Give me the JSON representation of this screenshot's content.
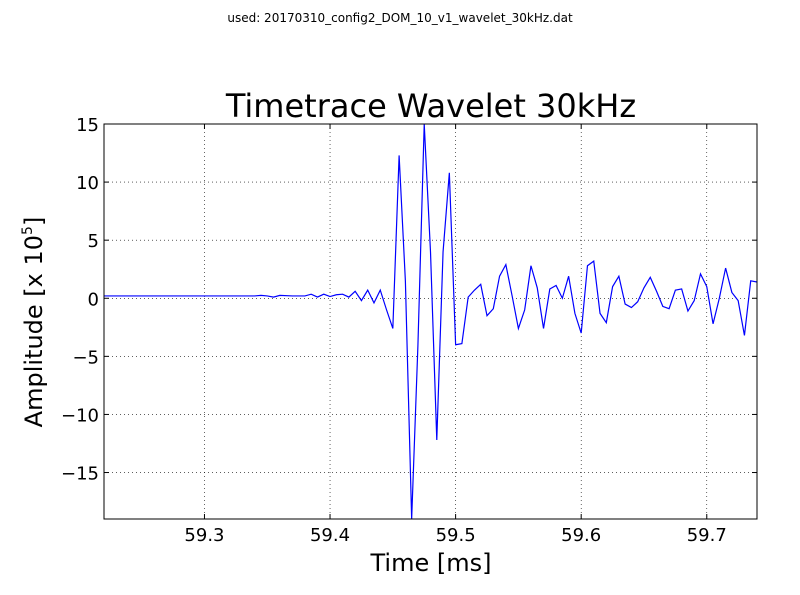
{
  "suptitle": "used: 20170310_config2_DOM_10_v1_wavelet_30kHz.dat",
  "chart_data": {
    "type": "line",
    "title": "Timetrace Wavelet 30kHz",
    "xlabel": "Time [ms]",
    "ylabel_main": "Amplitude [x 10",
    "ylabel_exp": "5",
    "ylabel_close": "]",
    "xlim": [
      59.22,
      59.74
    ],
    "ylim": [
      -19,
      15
    ],
    "xticks": [
      59.3,
      59.4,
      59.5,
      59.6,
      59.7
    ],
    "xtick_labels": [
      "59.3",
      "59.4",
      "59.5",
      "59.6",
      "59.7"
    ],
    "yticks": [
      15,
      10,
      5,
      0,
      -5,
      -10,
      -15
    ],
    "ytick_labels": [
      "15",
      "10",
      "5",
      "0",
      "−5",
      "−10",
      "−15"
    ],
    "grid": true,
    "line_color": "#0000ff",
    "series": [
      {
        "name": "amplitude",
        "x": [
          59.22,
          59.23,
          59.24,
          59.25,
          59.26,
          59.27,
          59.28,
          59.29,
          59.3,
          59.31,
          59.32,
          59.33,
          59.34,
          59.345,
          59.35,
          59.355,
          59.36,
          59.37,
          59.38,
          59.385,
          59.39,
          59.395,
          59.4,
          59.405,
          59.41,
          59.415,
          59.42,
          59.425,
          59.43,
          59.435,
          59.44,
          59.445,
          59.45,
          59.455,
          59.46,
          59.465,
          59.47,
          59.475,
          59.48,
          59.485,
          59.49,
          59.495,
          59.5,
          59.505,
          59.51,
          59.515,
          59.52,
          59.525,
          59.53,
          59.535,
          59.54,
          59.545,
          59.55,
          59.555,
          59.56,
          59.565,
          59.57,
          59.575,
          59.58,
          59.585,
          59.59,
          59.595,
          59.6,
          59.605,
          59.61,
          59.615,
          59.62,
          59.625,
          59.63,
          59.635,
          59.64,
          59.645,
          59.65,
          59.655,
          59.66,
          59.665,
          59.67,
          59.675,
          59.68,
          59.685,
          59.69,
          59.695,
          59.7,
          59.705,
          59.71,
          59.715,
          59.72,
          59.725,
          59.73,
          59.735,
          59.74
        ],
        "y": [
          0.2,
          0.2,
          0.2,
          0.2,
          0.2,
          0.2,
          0.2,
          0.2,
          0.2,
          0.2,
          0.2,
          0.2,
          0.2,
          0.25,
          0.2,
          0.1,
          0.25,
          0.2,
          0.2,
          0.35,
          0.1,
          0.35,
          0.15,
          0.3,
          0.35,
          0.1,
          0.6,
          -0.2,
          0.7,
          -0.4,
          0.7,
          -1.0,
          -2.6,
          12.3,
          1.5,
          -19.0,
          -4.0,
          15.0,
          4.0,
          -12.2,
          4.0,
          10.8,
          -4.0,
          -3.9,
          0.1,
          0.7,
          1.2,
          -1.5,
          -0.9,
          1.9,
          2.9,
          0.2,
          -2.6,
          -1.0,
          2.8,
          0.9,
          -2.6,
          0.8,
          1.1,
          0.0,
          1.9,
          -1.3,
          -3.0,
          2.8,
          3.2,
          -1.3,
          -2.1,
          1.0,
          1.9,
          -0.5,
          -0.8,
          -0.3,
          0.9,
          1.8,
          0.6,
          -0.7,
          -0.9,
          0.7,
          0.8,
          -1.1,
          -0.2,
          2.1,
          1.0,
          -2.2,
          0.0,
          2.6,
          0.5,
          -0.2,
          -3.2,
          1.5,
          1.4
        ]
      }
    ]
  }
}
